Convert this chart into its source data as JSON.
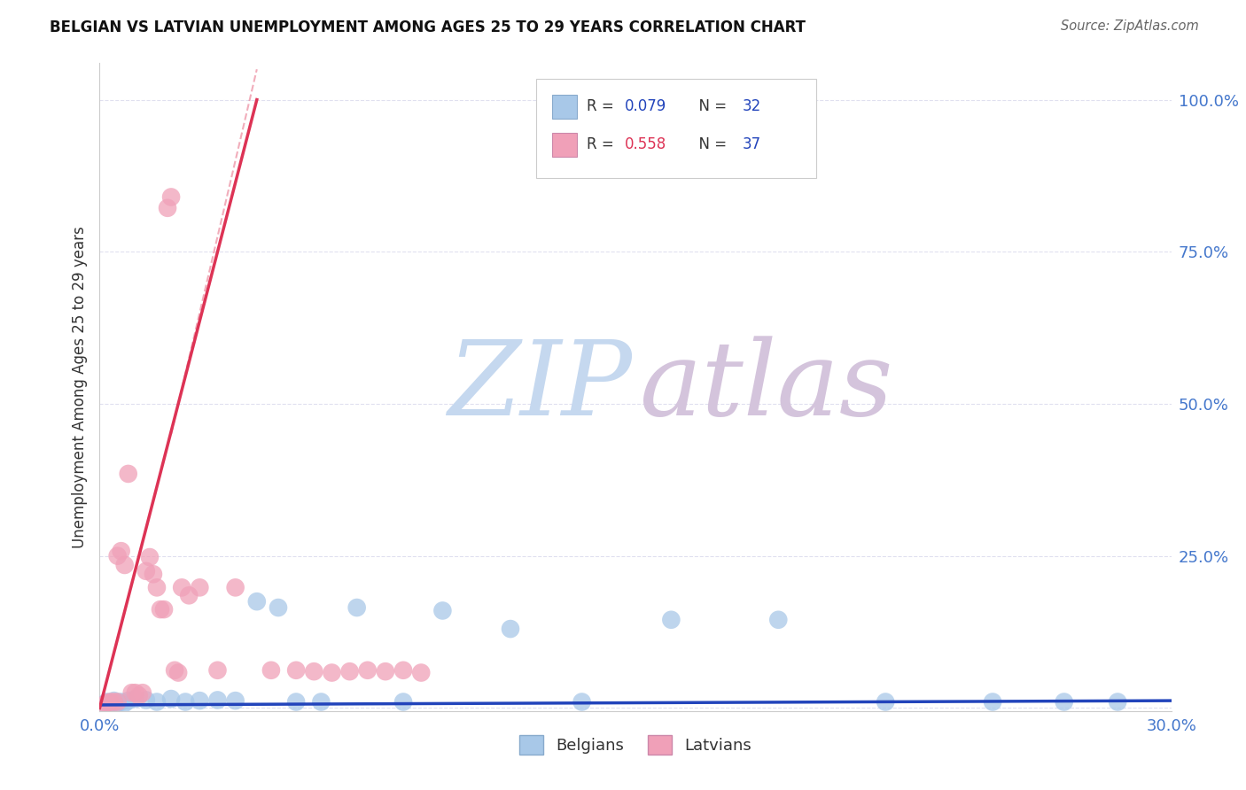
{
  "title": "BELGIAN VS LATVIAN UNEMPLOYMENT AMONG AGES 25 TO 29 YEARS CORRELATION CHART",
  "source": "Source: ZipAtlas.com",
  "xlim": [
    0.0,
    0.3
  ],
  "ylim": [
    -0.005,
    1.06
  ],
  "belgians_x": [
    0.001,
    0.002,
    0.003,
    0.003,
    0.004,
    0.005,
    0.006,
    0.007,
    0.008,
    0.01,
    0.013,
    0.016,
    0.02,
    0.024,
    0.028,
    0.033,
    0.038,
    0.044,
    0.05,
    0.055,
    0.062,
    0.072,
    0.085,
    0.096,
    0.115,
    0.135,
    0.16,
    0.19,
    0.22,
    0.25,
    0.27,
    0.285
  ],
  "belgians_y": [
    0.005,
    0.01,
    0.005,
    0.008,
    0.012,
    0.008,
    0.01,
    0.008,
    0.012,
    0.015,
    0.013,
    0.01,
    0.015,
    0.01,
    0.012,
    0.013,
    0.012,
    0.175,
    0.165,
    0.01,
    0.01,
    0.165,
    0.01,
    0.16,
    0.13,
    0.01,
    0.145,
    0.145,
    0.01,
    0.01,
    0.01,
    0.01
  ],
  "latvians_x": [
    0.001,
    0.002,
    0.003,
    0.004,
    0.005,
    0.005,
    0.006,
    0.007,
    0.008,
    0.009,
    0.01,
    0.011,
    0.012,
    0.013,
    0.014,
    0.015,
    0.016,
    0.017,
    0.018,
    0.019,
    0.02,
    0.021,
    0.022,
    0.023,
    0.025,
    0.028,
    0.033,
    0.038,
    0.048,
    0.055,
    0.06,
    0.065,
    0.07,
    0.075,
    0.08,
    0.085,
    0.09
  ],
  "latvians_y": [
    0.005,
    0.008,
    0.01,
    0.01,
    0.01,
    0.25,
    0.258,
    0.235,
    0.385,
    0.025,
    0.025,
    0.02,
    0.025,
    0.225,
    0.248,
    0.22,
    0.198,
    0.162,
    0.162,
    0.822,
    0.84,
    0.062,
    0.058,
    0.198,
    0.185,
    0.198,
    0.062,
    0.198,
    0.062,
    0.062,
    0.06,
    0.058,
    0.06,
    0.062,
    0.06,
    0.062,
    0.058
  ],
  "belgian_color": "#a8c8e8",
  "latvian_color": "#f0a0b8",
  "belgian_line_color": "#2244bb",
  "latvian_line_color": "#dd3355",
  "belgian_R": 0.079,
  "belgian_N": 32,
  "latvian_R": 0.558,
  "latvian_N": 37,
  "watermark_zip_color": "#c5d8ef",
  "watermark_atlas_color": "#d4c4dc",
  "xticks": [
    0.0,
    0.05,
    0.1,
    0.15,
    0.2,
    0.25,
    0.3
  ],
  "xticklabels": [
    "0.0%",
    "",
    "",
    "",
    "",
    "",
    "30.0%"
  ],
  "yticks": [
    0.0,
    0.25,
    0.5,
    0.75,
    1.0
  ],
  "yticklabels": [
    "",
    "25.0%",
    "50.0%",
    "75.0%",
    "100.0%"
  ],
  "tick_color": "#4477cc",
  "ylabel": "Unemployment Among Ages 25 to 29 years",
  "grid_color": "#ddddee",
  "belgians_label": "Belgians",
  "latvians_label": "Latvians"
}
